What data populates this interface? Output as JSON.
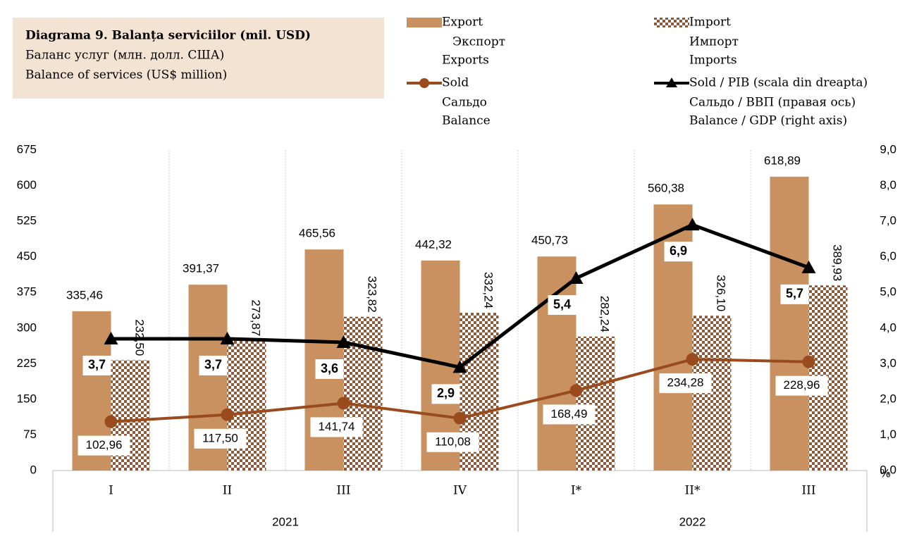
{
  "chart_data": {
    "type": "bar_line",
    "title": [
      "Diagrama 9. Balanța serviciilor (mil. USD)",
      "Баланс услуг (млн. долл. США)",
      "Balance of services (US$ million)"
    ],
    "categories": [
      "I",
      "II",
      "III",
      "IV",
      "I*",
      "II*",
      "III"
    ],
    "groups": [
      {
        "label": "2021",
        "count": 4
      },
      {
        "label": "2022",
        "count": 3
      }
    ],
    "y2_unit": "%",
    "legend": "top-right",
    "grid": true,
    "ylim": [
      0,
      675
    ],
    "yticks": [
      0,
      75,
      150,
      225,
      300,
      375,
      450,
      525,
      600,
      675
    ],
    "y2lim": [
      0,
      9
    ],
    "y2ticks": [
      {
        "value": 0,
        "label": "0,0"
      },
      {
        "value": 1,
        "label": "1,0"
      },
      {
        "value": 2,
        "label": "2,0"
      },
      {
        "value": 3,
        "label": "3,0"
      },
      {
        "value": 4,
        "label": "4,0"
      },
      {
        "value": 5,
        "label": "5,0"
      },
      {
        "value": 6,
        "label": "6,0"
      },
      {
        "value": 7,
        "label": "7,0"
      },
      {
        "value": 8,
        "label": "8,0"
      },
      {
        "value": 9,
        "label": "9,0"
      }
    ],
    "series": [
      {
        "name": [
          "Export",
          "Экспорт",
          "Exports"
        ],
        "kind": "bar",
        "color": "#c8915f",
        "values": [
          335.46,
          391.37,
          465.56,
          442.32,
          450.73,
          560.38,
          618.89
        ],
        "value_labels": [
          "335,46",
          "391,37",
          "465,56",
          "442,32",
          "450,73",
          "560,38",
          "618,89"
        ]
      },
      {
        "name": [
          "Import",
          "Импорт",
          "Imports"
        ],
        "kind": "bar",
        "pattern": "checker",
        "color": "#8a5a3a",
        "values": [
          232.5,
          273.87,
          323.82,
          332.24,
          282.24,
          326.1,
          389.93
        ],
        "value_labels": [
          "232,50",
          "273,87",
          "323,82",
          "332,24",
          "282,24",
          "326,10",
          "389,93"
        ]
      },
      {
        "name": [
          "Sold",
          "Сальдо",
          "Balance"
        ],
        "kind": "line",
        "marker": "circle",
        "color": "#9a4b1e",
        "values": [
          102.96,
          117.5,
          141.74,
          110.08,
          168.49,
          234.28,
          228.96
        ],
        "value_labels": [
          "102,96",
          "117,50",
          "141,74",
          "110,08",
          "168,49",
          "234,28",
          "228,96"
        ]
      },
      {
        "name": [
          "Sold / PIB (scala din dreapta)",
          "Сальдо / ВВП (правая ось)",
          "Balance / GDP (right axis)"
        ],
        "kind": "line",
        "marker": "triangle",
        "color": "#000000",
        "axis": "y2",
        "values": [
          3.7,
          3.7,
          3.6,
          2.9,
          5.4,
          6.9,
          5.7
        ],
        "value_labels": [
          "3,7",
          "3,7",
          "3,6",
          "2,9",
          "5,4",
          "6,9",
          "5,7"
        ]
      }
    ]
  }
}
